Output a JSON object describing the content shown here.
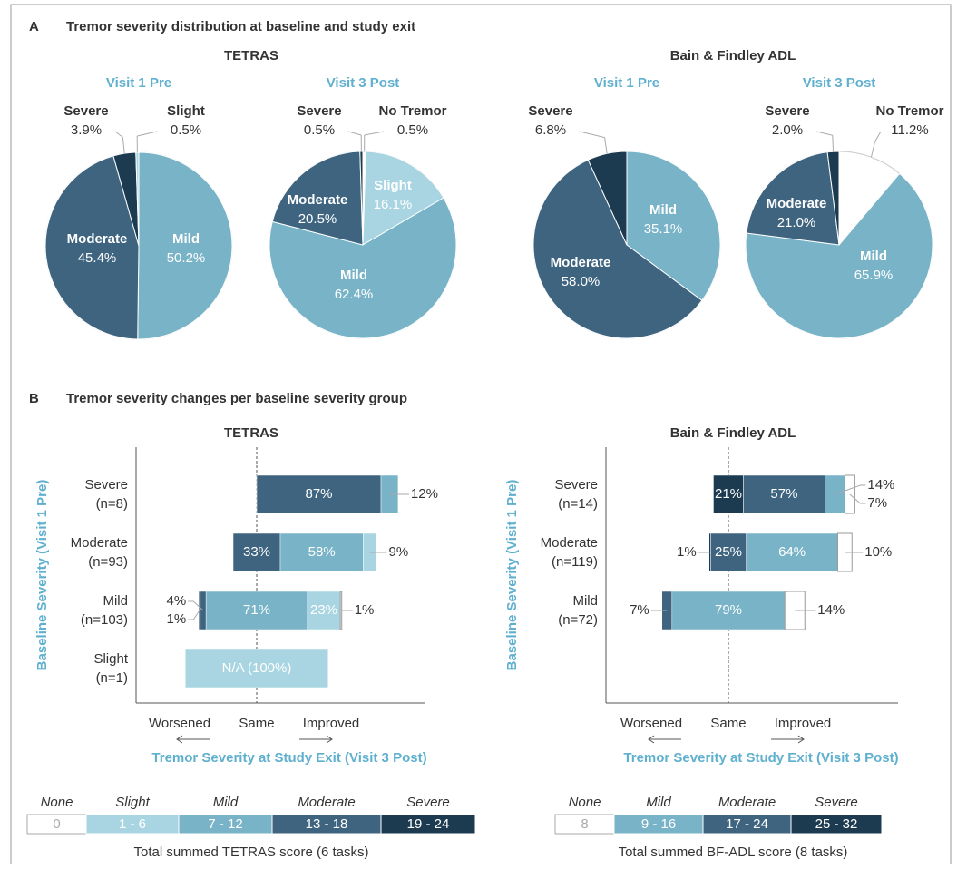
{
  "panels": [
    {
      "letter": "A",
      "title": "Tremor severity distribution at baseline and study exit"
    },
    {
      "letter": "B",
      "title": "Tremor severity changes per baseline severity group"
    }
  ],
  "pie_groups": [
    "TETRAS",
    "Bain & Findley ADL"
  ],
  "chart_data": [
    {
      "type": "pie",
      "title": "Visit 1 Pre",
      "categories": [
        "Mild",
        "Moderate",
        "Severe",
        "Slight"
      ],
      "values": [
        50.2,
        45.4,
        3.9,
        0.5
      ],
      "value_labels": [
        "50.2%",
        "45.4%",
        "3.9%",
        "0.5%"
      ],
      "colors": [
        "#78b3c7",
        "#3e6480",
        "#1c3b50",
        "#a8d5e1"
      ]
    },
    {
      "type": "pie",
      "title": "Visit 3 Post",
      "categories": [
        "No Tremor",
        "Slight",
        "Mild",
        "Moderate",
        "Severe"
      ],
      "values": [
        0.5,
        16.1,
        62.4,
        20.5,
        0.5
      ],
      "value_labels": [
        "0.5%",
        "16.1%",
        "62.4%",
        "20.5%",
        "0.5%"
      ],
      "colors": [
        "#ffffff",
        "#a8d5e1",
        "#78b3c7",
        "#3e6480",
        "#1c3b50"
      ]
    },
    {
      "type": "pie",
      "title": "Visit 1 Pre",
      "categories": [
        "Mild",
        "Moderate",
        "Severe"
      ],
      "values": [
        35.1,
        58.0,
        6.8
      ],
      "value_labels": [
        "35.1%",
        "58.0%",
        "6.8%"
      ],
      "colors": [
        "#78b3c7",
        "#3e6480",
        "#1c3b50"
      ]
    },
    {
      "type": "pie",
      "title": "Visit 3 Post",
      "categories": [
        "No Tremor",
        "Mild",
        "Moderate",
        "Severe"
      ],
      "values": [
        11.2,
        65.9,
        21.0,
        2.0
      ],
      "value_labels": [
        "11.2%",
        "65.9%",
        "21.0%",
        "2.0%"
      ],
      "colors": [
        "#ffffff",
        "#78b3c7",
        "#3e6480",
        "#1c3b50"
      ]
    },
    {
      "type": "bar",
      "title": "TETRAS",
      "categories": [
        "Severe (n=8)",
        "Moderate (n=93)",
        "Mild (n=103)",
        "Slight (n=1)"
      ],
      "series": [
        {
          "name": "None",
          "range": "0",
          "color": "#ffffff",
          "values": [
            null,
            null,
            1,
            null
          ],
          "value_labels": [
            null,
            null,
            "1%",
            null
          ]
        },
        {
          "name": "Slight",
          "range": "1 - 6",
          "color": "#a8d5e1",
          "values": [
            null,
            9,
            23,
            100
          ],
          "value_labels": [
            null,
            "9%",
            "23%",
            "N/A (100%)"
          ]
        },
        {
          "name": "Mild",
          "range": "7 - 12",
          "color": "#78b3c7",
          "values": [
            12,
            58,
            71,
            null
          ],
          "value_labels": [
            "12%",
            "58%",
            "71%",
            null
          ]
        },
        {
          "name": "Moderate",
          "range": "13 - 18",
          "color": "#3e6480",
          "values": [
            87,
            33,
            4,
            null
          ],
          "value_labels": [
            "87%",
            "33%",
            "4%",
            null
          ]
        },
        {
          "name": "Severe",
          "range": "19 - 24",
          "color": "#1c3b50",
          "values": [
            null,
            null,
            1,
            null
          ],
          "value_labels": [
            null,
            null,
            "1%",
            null
          ]
        }
      ],
      "ylabel": "Baseline Severity (Visit 1 Pre)",
      "xlabel": "Tremor Severity at Study Exit (Visit 3 Post)",
      "annotations": [
        "Worsened",
        "Same",
        "Improved"
      ],
      "legend_title": "Total summed TETRAS score (6 tasks)"
    },
    {
      "type": "bar",
      "title": "Bain & Findley ADL",
      "categories": [
        "Severe (n=14)",
        "Moderate (n=119)",
        "Mild (n=72)"
      ],
      "series": [
        {
          "name": "None",
          "range": "8",
          "color": "#ffffff",
          "values": [
            7,
            10,
            14
          ],
          "value_labels": [
            "7%",
            "10%",
            "14%"
          ]
        },
        {
          "name": "Mild",
          "range": "9 - 16",
          "color": "#78b3c7",
          "values": [
            14,
            64,
            79
          ],
          "value_labels": [
            "14%",
            "64%",
            "79%"
          ]
        },
        {
          "name": "Moderate",
          "range": "17 - 24",
          "color": "#3e6480",
          "values": [
            57,
            25,
            7
          ],
          "value_labels": [
            "57%",
            "25%",
            "7%"
          ]
        },
        {
          "name": "Severe",
          "range": "25 - 32",
          "color": "#1c3b50",
          "values": [
            21,
            1,
            null
          ],
          "value_labels": [
            "21%",
            "1%",
            null
          ]
        }
      ],
      "ylabel": "Baseline Severity (Visit 1 Pre)",
      "xlabel": "Tremor Severity at Study Exit (Visit 3 Post)",
      "annotations": [
        "Worsened",
        "Same",
        "Improved"
      ],
      "legend_title": "Total summed BF-ADL score (8 tasks)"
    }
  ]
}
